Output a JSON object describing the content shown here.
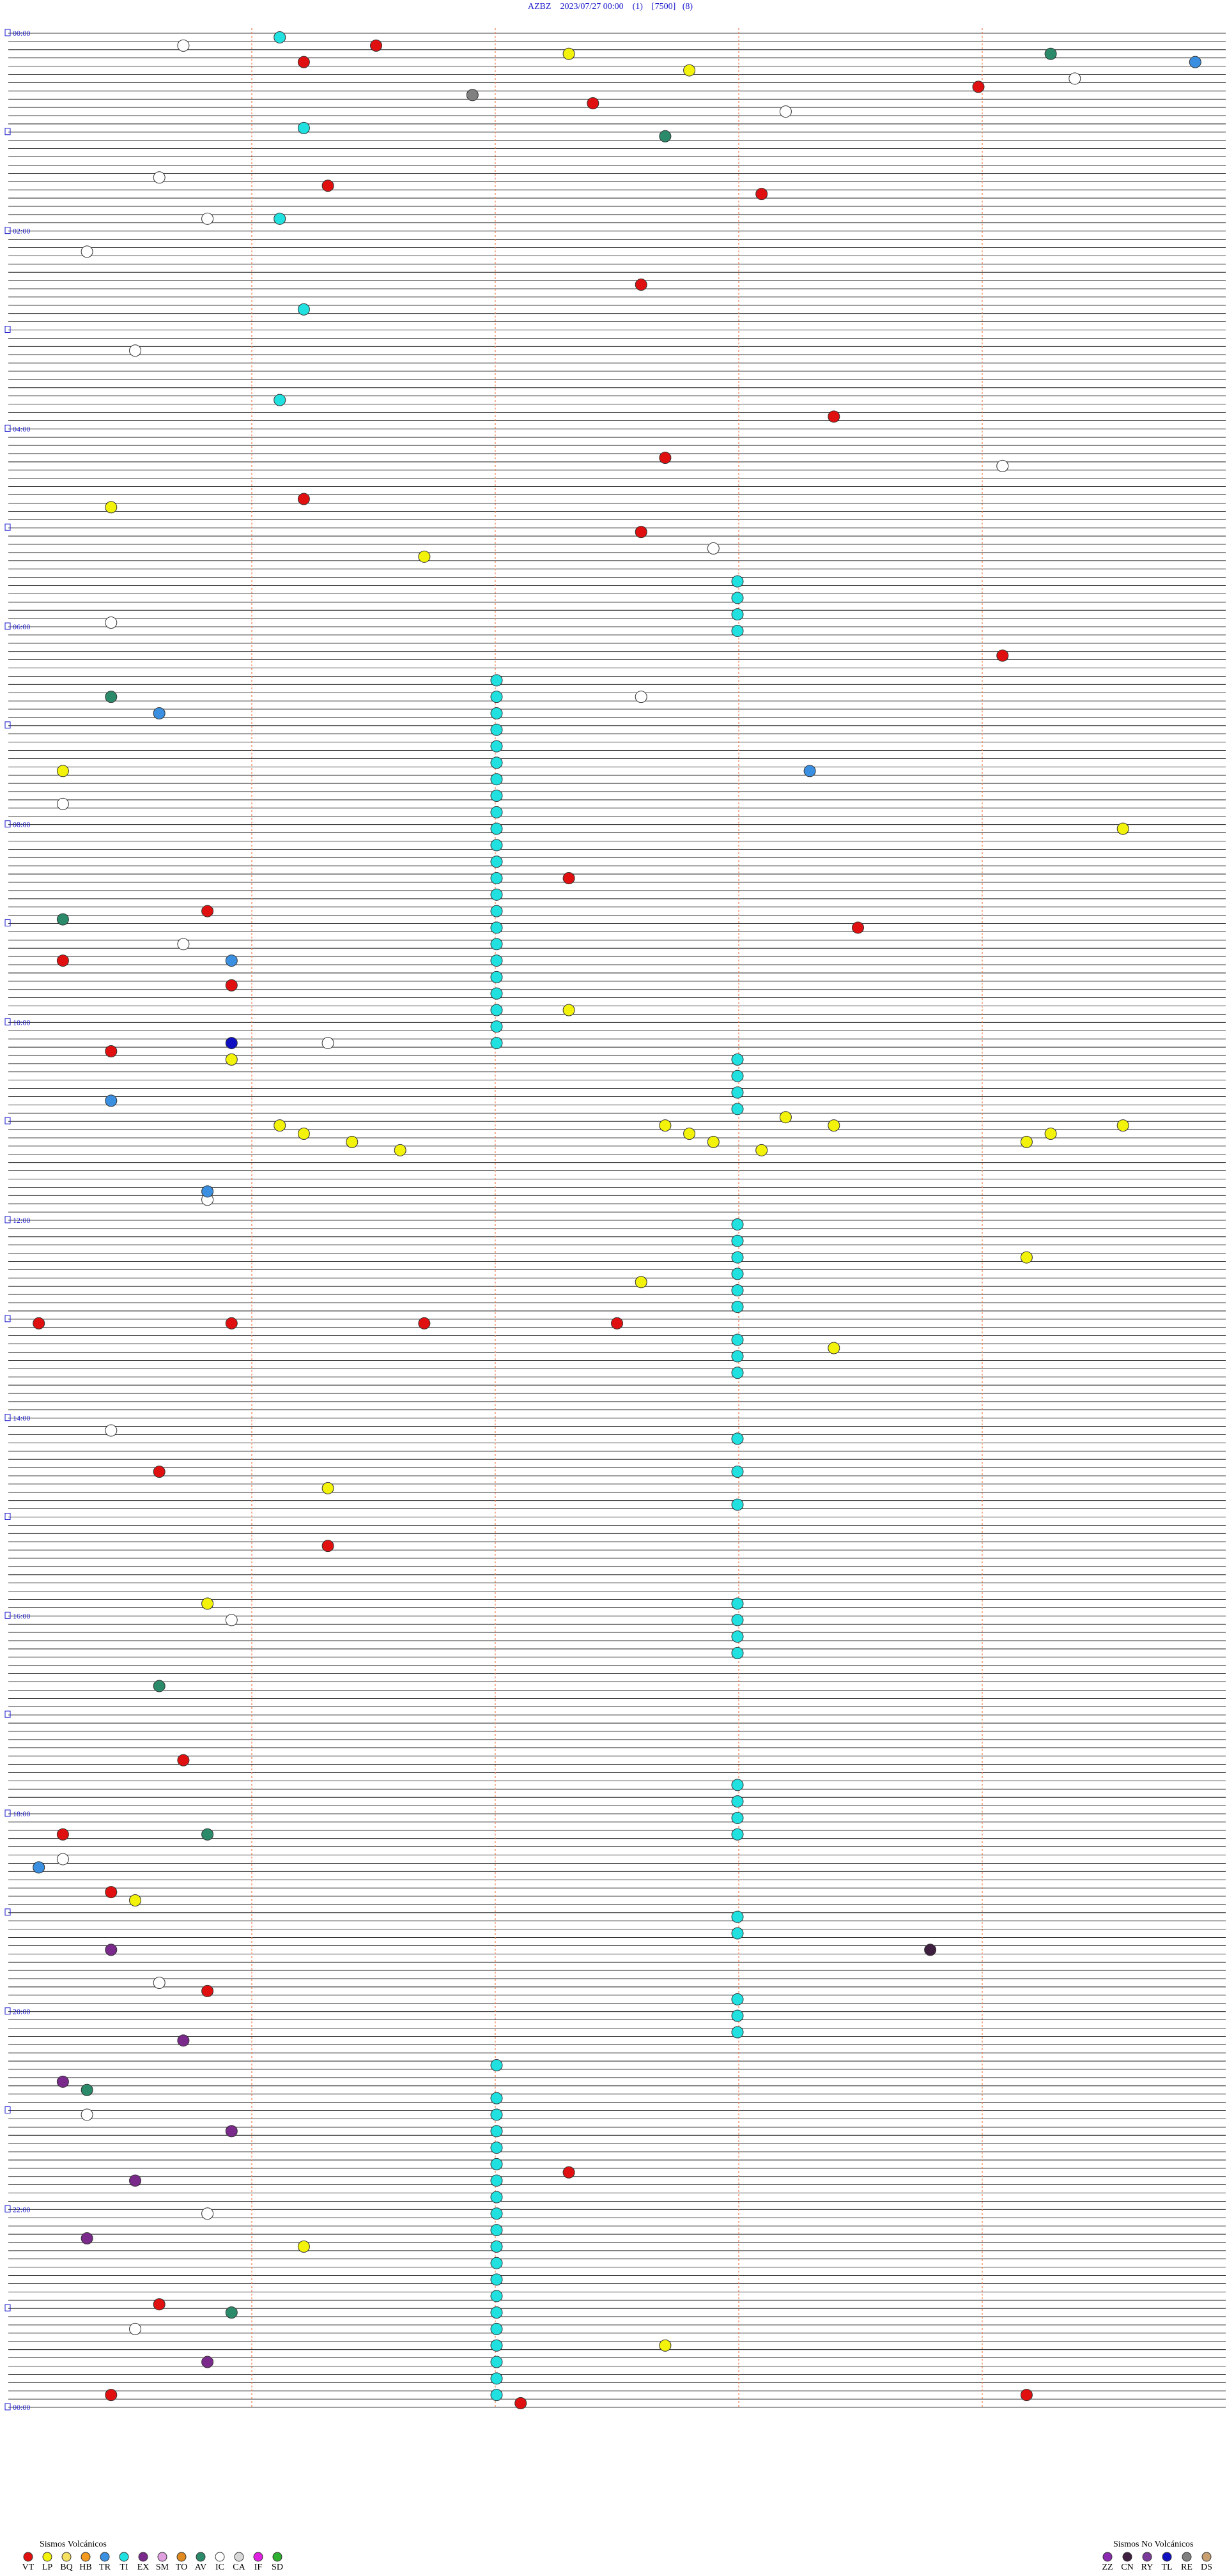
{
  "chart_data": {
    "type": "helicorder",
    "title": "AZBZ    2023/07/27 00:00    (1)    [7500]   (8)",
    "time_labels": [
      "00:00",
      "02:00",
      "04:00",
      "06:00",
      "08:00",
      "10:00",
      "12:00",
      "14:00",
      "16:00",
      "18:00",
      "20:00",
      "22:00",
      "00:00"
    ],
    "legend_volcanic": {
      "title": "Sismos Volcánicos",
      "items": [
        {
          "code": "VT",
          "color": "#e01010"
        },
        {
          "code": "LP",
          "color": "#f2f20a"
        },
        {
          "code": "BQ",
          "color": "#f5e060"
        },
        {
          "code": "HB",
          "color": "#f59a20"
        },
        {
          "code": "TR",
          "color": "#3a8fe0"
        },
        {
          "code": "TI",
          "color": "#20e0e0"
        },
        {
          "code": "EX",
          "color": "#7a2a8a"
        },
        {
          "code": "SM",
          "color": "#e0a0e0"
        },
        {
          "code": "TO",
          "color": "#e08a20"
        },
        {
          "code": "AV",
          "color": "#2a8a6a"
        },
        {
          "code": "IC",
          "color": "#ffffff"
        },
        {
          "code": "CA",
          "color": "#d8d8d8"
        },
        {
          "code": "IF",
          "color": "#e020e0"
        },
        {
          "code": "SD",
          "color": "#30b030"
        }
      ]
    },
    "legend_non_volcanic": {
      "title": "Sismos No Volcánicos",
      "items": [
        {
          "code": "ZZ",
          "color": "#8a2ab0"
        },
        {
          "code": "CN",
          "color": "#402040"
        },
        {
          "code": "RY",
          "color": "#7a3a9a"
        },
        {
          "code": "TL",
          "color": "#1010c0"
        },
        {
          "code": "RE",
          "color": "#808080"
        },
        {
          "code": "DS",
          "color": "#c8a070"
        }
      ]
    },
    "events": [
      [
        6.5,
        "VT"
      ],
      [
        16.2,
        "VT"
      ],
      [
        34,
        "VT"
      ],
      [
        42.4,
        "VT"
      ],
      [
        91.3,
        "VT"
      ],
      [
        98.1,
        "VT"
      ],
      [
        152.6,
        "VT"
      ],
      [
        233.4,
        "VT"
      ],
      [
        257.7,
        "VT"
      ],
      [
        281.2,
        "VT"
      ],
      [
        302.6,
        "VT"
      ],
      [
        379.1,
        "VT"
      ],
      [
        512.3,
        "VT"
      ],
      [
        530.8,
        "VT"
      ],
      [
        543.5,
        "VT"
      ],
      [
        560.2,
        "VT"
      ],
      [
        575.9,
        "VT"
      ],
      [
        615.4,
        "VT"
      ],
      [
        780.1,
        "VT"
      ],
      [
        780.9,
        "VT"
      ],
      [
        781.7,
        "VT"
      ],
      [
        782.5,
        "VT"
      ],
      [
        870.6,
        "VT"
      ],
      [
        916.3,
        "VT"
      ],
      [
        1045.7,
        "VT"
      ],
      [
        1090.2,
        "VT"
      ],
      [
        1125.4,
        "VT"
      ],
      [
        1185.8,
        "VT"
      ],
      [
        1297.3,
        "VT"
      ],
      [
        1375.6,
        "VT"
      ],
      [
        1430.4,
        "VT"
      ],
      [
        1434.2,
        "VT"
      ],
      [
        1437.1,
        "VT"
      ],
      [
        12.3,
        "LP"
      ],
      [
        22.8,
        "LP"
      ],
      [
        285.4,
        "LP"
      ],
      [
        316.7,
        "LP"
      ],
      [
        445.2,
        "LP"
      ],
      [
        484.6,
        "LP"
      ],
      [
        592.3,
        "LP"
      ],
      [
        620.9,
        "LP"
      ],
      [
        658.2,
        "LP"
      ],
      [
        661.1,
        "LP"
      ],
      [
        662.7,
        "LP"
      ],
      [
        663.4,
        "LP"
      ],
      [
        664.6,
        "LP"
      ],
      [
        666.2,
        "LP"
      ],
      [
        667.8,
        "LP"
      ],
      [
        669.3,
        "LP"
      ],
      [
        671.4,
        "LP"
      ],
      [
        672.9,
        "LP"
      ],
      [
        674.2,
        "LP"
      ],
      [
        676.6,
        "LP"
      ],
      [
        678.1,
        "LP"
      ],
      [
        744.2,
        "LP"
      ],
      [
        757.6,
        "LP"
      ],
      [
        798.4,
        "LP"
      ],
      [
        881.3,
        "LP"
      ],
      [
        950.8,
        "LP"
      ],
      [
        1130.5,
        "LP"
      ],
      [
        1341.2,
        "LP"
      ],
      [
        1402.7,
        "LP"
      ],
      [
        1.1,
        "TI"
      ],
      [
        56.2,
        "TI"
      ],
      [
        111.1,
        "TI"
      ],
      [
        166.2,
        "TI"
      ],
      [
        221.1,
        "TI"
      ],
      [
        333,
        "TI"
      ],
      [
        343,
        "TI"
      ],
      [
        353,
        "TI"
      ],
      [
        363,
        "TI"
      ],
      [
        392,
        "TI"
      ],
      [
        402,
        "TI"
      ],
      [
        412,
        "TI"
      ],
      [
        422,
        "TI"
      ],
      [
        432,
        "TI"
      ],
      [
        442,
        "TI"
      ],
      [
        452,
        "TI"
      ],
      [
        462,
        "TI"
      ],
      [
        472,
        "TI"
      ],
      [
        482,
        "TI"
      ],
      [
        492,
        "TI"
      ],
      [
        502,
        "TI"
      ],
      [
        512,
        "TI"
      ],
      [
        522,
        "TI"
      ],
      [
        532,
        "TI"
      ],
      [
        542,
        "TI"
      ],
      [
        552,
        "TI"
      ],
      [
        562,
        "TI"
      ],
      [
        572,
        "TI"
      ],
      [
        582,
        "TI"
      ],
      [
        592,
        "TI"
      ],
      [
        602,
        "TI"
      ],
      [
        612,
        "TI"
      ],
      [
        623,
        "TI"
      ],
      [
        633,
        "TI"
      ],
      [
        643,
        "TI"
      ],
      [
        653,
        "TI"
      ],
      [
        723,
        "TI"
      ],
      [
        733,
        "TI"
      ],
      [
        743,
        "TI"
      ],
      [
        753,
        "TI"
      ],
      [
        763,
        "TI"
      ],
      [
        773,
        "TI"
      ],
      [
        793,
        "TI"
      ],
      [
        803,
        "TI"
      ],
      [
        813,
        "TI"
      ],
      [
        853,
        "TI"
      ],
      [
        873,
        "TI"
      ],
      [
        893,
        "TI"
      ],
      [
        953,
        "TI"
      ],
      [
        963,
        "TI"
      ],
      [
        973,
        "TI"
      ],
      [
        983,
        "TI"
      ],
      [
        1063,
        "TI"
      ],
      [
        1073,
        "TI"
      ],
      [
        1083,
        "TI"
      ],
      [
        1093,
        "TI"
      ],
      [
        1143,
        "TI"
      ],
      [
        1153,
        "TI"
      ],
      [
        1193,
        "TI"
      ],
      [
        1203,
        "TI"
      ],
      [
        1213,
        "TI"
      ],
      [
        1232,
        "TI"
      ],
      [
        1252,
        "TI"
      ],
      [
        1262,
        "TI"
      ],
      [
        1272,
        "TI"
      ],
      [
        1282,
        "TI"
      ],
      [
        1292,
        "TI"
      ],
      [
        1302,
        "TI"
      ],
      [
        1312,
        "TI"
      ],
      [
        1322,
        "TI"
      ],
      [
        1332,
        "TI"
      ],
      [
        1342,
        "TI"
      ],
      [
        1352,
        "TI"
      ],
      [
        1362,
        "TI"
      ],
      [
        1372,
        "TI"
      ],
      [
        1382,
        "TI"
      ],
      [
        1392,
        "TI"
      ],
      [
        1402,
        "TI"
      ],
      [
        1412,
        "TI"
      ],
      [
        1422,
        "TI"
      ],
      [
        1432,
        "TI"
      ],
      [
        5.7,
        "IC"
      ],
      [
        29.4,
        "IC"
      ],
      [
        48.2,
        "IC"
      ],
      [
        85.6,
        "IC"
      ],
      [
        110.8,
        "IC"
      ],
      [
        130.3,
        "IC"
      ],
      [
        190.5,
        "IC"
      ],
      [
        264.1,
        "IC"
      ],
      [
        312.9,
        "IC"
      ],
      [
        355.4,
        "IC"
      ],
      [
        402.6,
        "IC"
      ],
      [
        465.2,
        "IC"
      ],
      [
        550.7,
        "IC"
      ],
      [
        611.3,
        "IC"
      ],
      [
        705.8,
        "IC"
      ],
      [
        845.4,
        "IC"
      ],
      [
        960.9,
        "IC"
      ],
      [
        1105.2,
        "IC"
      ],
      [
        1180.6,
        "IC"
      ],
      [
        1260.3,
        "IC"
      ],
      [
        1320.8,
        "IC"
      ],
      [
        1390.5,
        "IC"
      ],
      [
        14.3,
        "AV"
      ],
      [
        62.7,
        "AV"
      ],
      [
        400.4,
        "AV"
      ],
      [
        535.2,
        "AV"
      ],
      [
        1000.6,
        "AV"
      ],
      [
        1090.8,
        "AV"
      ],
      [
        1245.3,
        "AV"
      ],
      [
        1380.9,
        "AV"
      ],
      [
        19.9,
        "TR"
      ],
      [
        410.6,
        "TR"
      ],
      [
        448.3,
        "TR"
      ],
      [
        560.9,
        "TR"
      ],
      [
        645.4,
        "TR"
      ],
      [
        700.8,
        "TR"
      ],
      [
        1110.1,
        "TR"
      ],
      [
        1160.4,
        "EX"
      ],
      [
        1215.7,
        "EX"
      ],
      [
        1240.2,
        "EX"
      ],
      [
        1270.9,
        "EX"
      ],
      [
        1300.5,
        "EX"
      ],
      [
        1335.3,
        "EX"
      ],
      [
        1410.8,
        "EX"
      ],
      [
        36.9,
        "RE"
      ],
      [
        610.9,
        "TL"
      ],
      [
        1163.8,
        "CN"
      ]
    ]
  }
}
